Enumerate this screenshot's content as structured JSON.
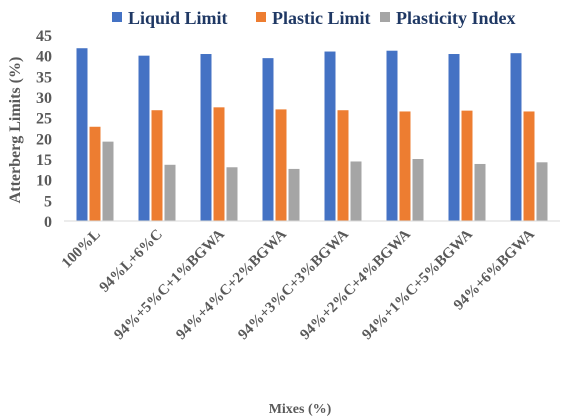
{
  "chart_data": {
    "type": "bar",
    "title": "",
    "xlabel": "Mixes (%)",
    "ylabel": "Atterberg Limits (%)",
    "ylim": [
      0,
      45
    ],
    "yticks": [
      "0",
      "5",
      "10",
      "15",
      "20",
      "25",
      "30",
      "35",
      "40",
      "45"
    ],
    "grid": false,
    "legend_position": "top",
    "categories": [
      "100%L",
      "94%L+6%C",
      "94%+5%C+1%BGWA",
      "94%+4%C+2%BGWA",
      "94%+3%C+3%BGWA",
      "94%+2%C+4%BGWA",
      "94%+1%C+5%BGWA",
      "94%+6%BGWA"
    ],
    "series": [
      {
        "name": "Liquid Limit",
        "color": "#4472c4",
        "values": [
          41.8,
          40.0,
          40.4,
          39.4,
          41.0,
          41.2,
          40.4,
          40.6
        ]
      },
      {
        "name": "Plastic Limit",
        "color": "#ed7d31",
        "values": [
          22.8,
          26.8,
          27.5,
          27.0,
          26.8,
          26.5,
          26.7,
          26.5
        ]
      },
      {
        "name": "Plasticity Index",
        "color": "#a5a5a5",
        "values": [
          19.2,
          13.6,
          13.0,
          12.6,
          14.4,
          15.0,
          13.8,
          14.2
        ]
      }
    ]
  }
}
